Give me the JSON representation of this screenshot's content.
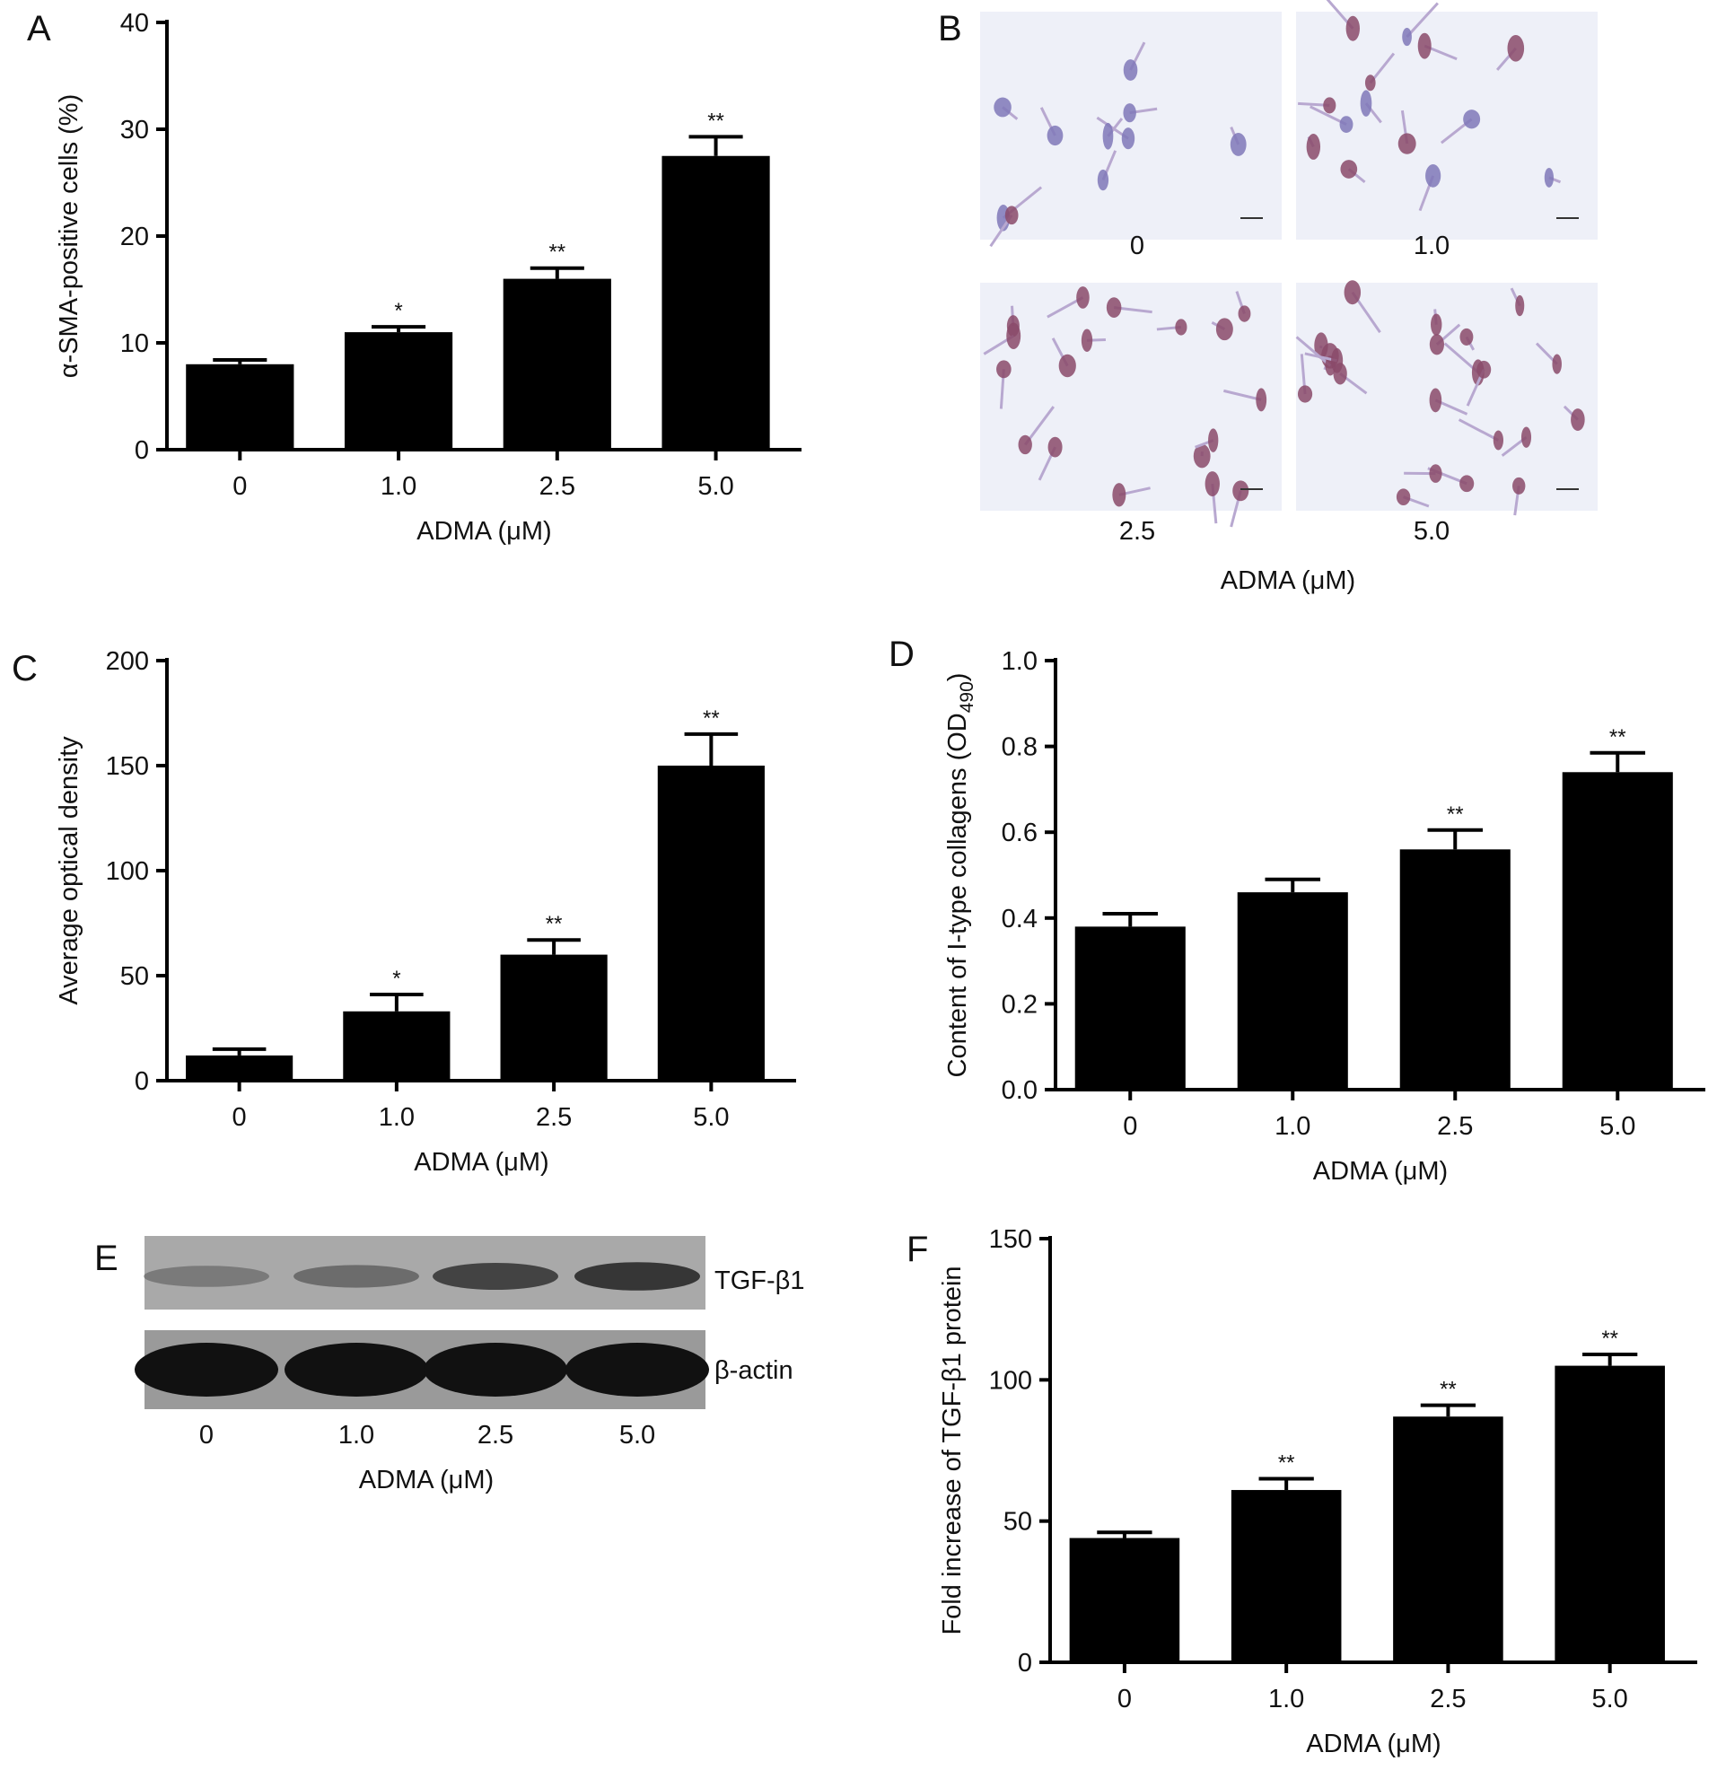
{
  "panel_letters": {
    "A": "A",
    "B": "B",
    "C": "C",
    "D": "D",
    "E": "E",
    "F": "F"
  },
  "chart_data": [
    {
      "id": "A",
      "type": "bar",
      "categories": [
        "0",
        "1.0",
        "2.5",
        "5.0"
      ],
      "values": [
        8,
        11,
        16,
        27.5
      ],
      "error": [
        0.4,
        0.5,
        1.0,
        1.8
      ],
      "significance": [
        "",
        "*",
        "**",
        "**"
      ],
      "xlabel": "ADMA (μM)",
      "ylabel": "α-SMA-positive cells (%)",
      "ylim": [
        0,
        40
      ],
      "yticks": [
        "0",
        "10",
        "20",
        "30",
        "40"
      ],
      "bar_color": "#000000",
      "grid": false
    },
    {
      "id": "C",
      "type": "bar",
      "categories": [
        "0",
        "1.0",
        "2.5",
        "5.0"
      ],
      "values": [
        12,
        33,
        60,
        150
      ],
      "error": [
        3,
        8,
        7,
        15
      ],
      "significance": [
        "",
        "*",
        "**",
        "**"
      ],
      "xlabel": "ADMA (μM)",
      "ylabel": "Average optical density",
      "ylim": [
        0,
        200
      ],
      "yticks": [
        "0",
        "50",
        "100",
        "150",
        "200"
      ],
      "bar_color": "#000000",
      "grid": false
    },
    {
      "id": "D",
      "type": "bar",
      "categories": [
        "0",
        "1.0",
        "2.5",
        "5.0"
      ],
      "values": [
        0.38,
        0.46,
        0.56,
        0.74
      ],
      "error": [
        0.03,
        0.03,
        0.045,
        0.045
      ],
      "significance": [
        "",
        "",
        "**",
        "**"
      ],
      "xlabel": "ADMA (μM)",
      "ylabel": "Content of I-type collagens (OD",
      "ylabel_sub": "490",
      "ylabel_end": ")",
      "ylim": [
        0,
        1.0
      ],
      "yticks": [
        "0.0",
        "0.2",
        "0.4",
        "0.6",
        "0.8",
        "1.0"
      ],
      "bar_color": "#000000",
      "grid": false
    },
    {
      "id": "F",
      "type": "bar",
      "categories": [
        "0",
        "1.0",
        "2.5",
        "5.0"
      ],
      "values": [
        44,
        61,
        87,
        105
      ],
      "error": [
        2,
        4,
        4,
        4
      ],
      "significance": [
        "",
        "**",
        "**",
        "**"
      ],
      "xlabel": "ADMA (μM)",
      "ylabel": "Fold increase of TGF-β1 protein",
      "ylim": [
        0,
        150
      ],
      "yticks": [
        "0",
        "50",
        "100",
        "150"
      ],
      "bar_color": "#000000",
      "grid": false
    }
  ],
  "micrographs": {
    "labels": [
      "0",
      "1.0",
      "2.5",
      "5.0"
    ],
    "xlabel": "ADMA (μM)"
  },
  "blot": {
    "bands": [
      "TGF-β1",
      "β-actin"
    ],
    "lanes": [
      "0",
      "1.0",
      "2.5",
      "5.0"
    ],
    "xlabel": "ADMA (μM)"
  }
}
